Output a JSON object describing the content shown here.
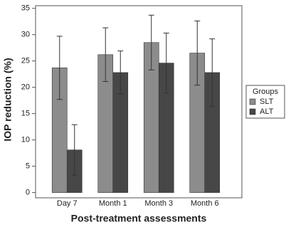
{
  "chart_data": {
    "type": "bar",
    "x_label": "Post-treatment assessments",
    "y_label": "IOP reduction (%)",
    "categories": [
      "Day 7",
      "Month 1",
      "Month 3",
      "Month 6"
    ],
    "series": [
      {
        "name": "SLT",
        "color": "#8c8c8c",
        "values": [
          23.7,
          26.2,
          28.5,
          26.5
        ],
        "errors": [
          6.0,
          5.1,
          5.2,
          6.1
        ]
      },
      {
        "name": "ALT",
        "color": "#474747",
        "values": [
          8.1,
          22.8,
          24.6,
          22.8
        ],
        "errors": [
          4.8,
          4.1,
          5.7,
          6.4
        ]
      }
    ],
    "ylim": [
      -1,
      35.5
    ],
    "yticks": [
      0,
      5,
      10,
      15,
      20,
      25,
      30,
      35
    ],
    "legend_title": "Groups",
    "legend_position": "right"
  }
}
